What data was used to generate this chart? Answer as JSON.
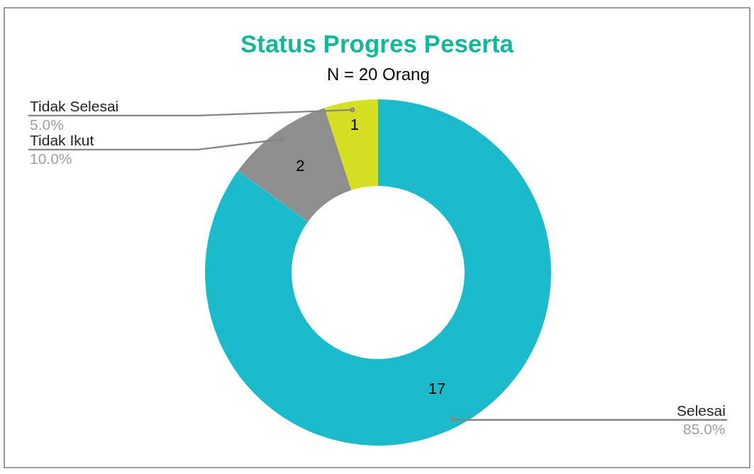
{
  "chart_data": {
    "type": "donut",
    "title": "Status Progres Peserta",
    "subtitle": "N = 20 Orang",
    "categories": [
      "Selesai",
      "Tidak Ikut",
      "Tidak Selesai"
    ],
    "values": [
      17,
      2,
      1
    ],
    "colors": [
      "#1cbbcc",
      "#8f8e8c",
      "#d6df23"
    ],
    "data_labels": true,
    "annotations": [
      {
        "text": "85.0%",
        "x": "Selesai"
      },
      {
        "text": "10.0%",
        "x": "Tidak Ikut"
      },
      {
        "text": "5.0%",
        "x": "Tidak Selesai"
      }
    ],
    "legend": false
  }
}
